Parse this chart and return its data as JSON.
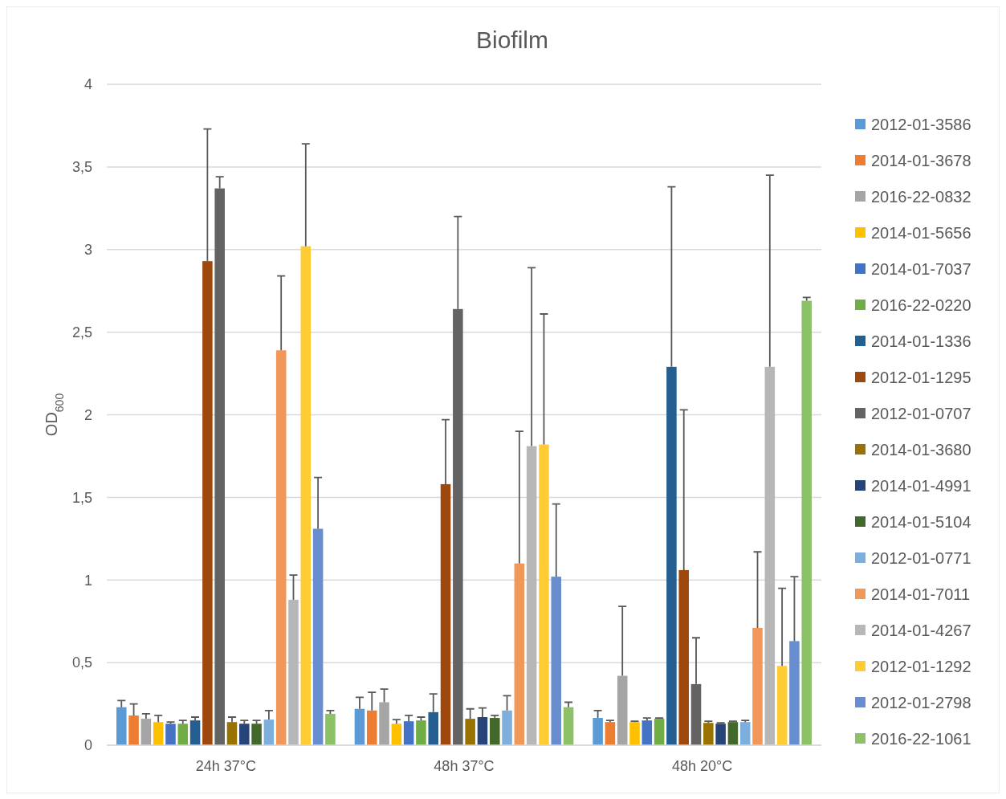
{
  "chart_data": {
    "type": "bar",
    "title": "Biofilm",
    "ylabel": "OD$_{600}$",
    "categories": [
      "24h 37°C",
      "48h 37°C",
      "48h 20°C"
    ],
    "ylim": [
      0,
      4
    ],
    "yticks": [
      0,
      {
        "value": 0.5,
        "label": "0,5"
      },
      1,
      {
        "value": 1.5,
        "label": "1,5"
      },
      2,
      {
        "value": 2.5,
        "label": "2,5"
      },
      3,
      {
        "value": 3.5,
        "label": "3,5"
      },
      4
    ],
    "grid": "y",
    "legend": "right",
    "series": [
      {
        "name": "2012-01-3586",
        "color": "#5b9bd5",
        "values": [
          0.23,
          0.22,
          0.165
        ],
        "errors": [
          [
            0.23,
            0.27
          ],
          [
            0.22,
            0.29
          ],
          [
            0.165,
            0.21
          ]
        ]
      },
      {
        "name": "2014-01-3678",
        "color": "#ed7d31",
        "values": [
          0.18,
          0.21,
          0.14
        ],
        "errors": [
          [
            0.18,
            0.25
          ],
          [
            0.21,
            0.32
          ],
          [
            0.14,
            0.15
          ]
        ]
      },
      {
        "name": "2016-22-0832",
        "color": "#a5a5a5",
        "values": [
          0.16,
          0.26,
          0.42
        ],
        "errors": [
          [
            0.16,
            0.19
          ],
          [
            0.26,
            0.34
          ],
          [
            0.42,
            0.84
          ]
        ]
      },
      {
        "name": "2014-01-5656",
        "color": "#ffc000",
        "values": [
          0.14,
          0.13,
          0.14
        ],
        "errors": [
          [
            0.14,
            0.18
          ],
          [
            0.13,
            0.155
          ],
          [
            0.14,
            0.145
          ]
        ]
      },
      {
        "name": "2014-01-7037",
        "color": "#4472c4",
        "values": [
          0.13,
          0.145,
          0.15
        ],
        "errors": [
          [
            0.13,
            0.14
          ],
          [
            0.145,
            0.18
          ],
          [
            0.15,
            0.165
          ]
        ]
      },
      {
        "name": "2016-22-0220",
        "color": "#70ad47",
        "values": [
          0.13,
          0.15,
          0.16
        ],
        "errors": [
          [
            0.13,
            0.15
          ],
          [
            0.15,
            0.17
          ],
          [
            0.16,
            0.165
          ]
        ]
      },
      {
        "name": "2014-01-1336",
        "color": "#255e91",
        "values": [
          0.15,
          0.2,
          2.29
        ],
        "errors": [
          [
            0.15,
            0.17
          ],
          [
            0.2,
            0.31
          ],
          [
            2.29,
            3.38
          ]
        ]
      },
      {
        "name": "2012-01-1295",
        "color": "#9e480e",
        "values": [
          2.93,
          1.58,
          1.06
        ],
        "errors": [
          [
            2.93,
            3.73
          ],
          [
            1.58,
            1.97
          ],
          [
            1.06,
            2.03
          ]
        ]
      },
      {
        "name": "2012-01-0707",
        "color": "#636363",
        "values": [
          3.37,
          2.64,
          0.37
        ],
        "errors": [
          [
            3.37,
            3.44
          ],
          [
            2.64,
            3.2
          ],
          [
            0.37,
            0.65
          ]
        ]
      },
      {
        "name": "2014-01-3680",
        "color": "#997300",
        "values": [
          0.14,
          0.16,
          0.135
        ],
        "errors": [
          [
            0.14,
            0.17
          ],
          [
            0.16,
            0.22
          ],
          [
            0.135,
            0.145
          ]
        ]
      },
      {
        "name": "2014-01-4991",
        "color": "#264478",
        "values": [
          0.13,
          0.17,
          0.13
        ],
        "errors": [
          [
            0.13,
            0.15
          ],
          [
            0.17,
            0.225
          ],
          [
            0.13,
            0.135
          ]
        ]
      },
      {
        "name": "2014-01-5104",
        "color": "#43682b",
        "values": [
          0.13,
          0.165,
          0.14
        ],
        "errors": [
          [
            0.13,
            0.15
          ],
          [
            0.165,
            0.18
          ],
          [
            0.14,
            0.145
          ]
        ]
      },
      {
        "name": "2012-01-0771",
        "color": "#7cafdd",
        "values": [
          0.155,
          0.21,
          0.14
        ],
        "errors": [
          [
            0.155,
            0.21
          ],
          [
            0.21,
            0.3
          ],
          [
            0.14,
            0.15
          ]
        ]
      },
      {
        "name": "2014-01-7011",
        "color": "#f1975a",
        "values": [
          2.39,
          1.1,
          0.71
        ],
        "errors": [
          [
            2.39,
            2.84
          ],
          [
            1.1,
            1.9
          ],
          [
            0.71,
            1.17
          ]
        ]
      },
      {
        "name": "2014-01-4267",
        "color": "#b7b7b7",
        "values": [
          0.88,
          1.81,
          2.29
        ],
        "errors": [
          [
            0.88,
            1.03
          ],
          [
            1.81,
            2.89
          ],
          [
            2.29,
            3.45
          ]
        ]
      },
      {
        "name": "2012-01-1292",
        "color": "#ffcd33",
        "values": [
          3.02,
          1.82,
          0.48
        ],
        "errors": [
          [
            3.02,
            3.64
          ],
          [
            1.82,
            2.61
          ],
          [
            0.48,
            0.95
          ]
        ]
      },
      {
        "name": "2012-01-2798",
        "color": "#698ed0",
        "values": [
          1.31,
          1.02,
          0.63
        ],
        "errors": [
          [
            1.31,
            1.62
          ],
          [
            1.02,
            1.46
          ],
          [
            0.63,
            1.02
          ]
        ]
      },
      {
        "name": "2016-22-1061",
        "color": "#8cc168",
        "values": [
          0.19,
          0.23,
          2.69
        ],
        "errors": [
          [
            0.19,
            0.21
          ],
          [
            0.23,
            0.26
          ],
          [
            2.69,
            2.71
          ]
        ]
      }
    ]
  }
}
